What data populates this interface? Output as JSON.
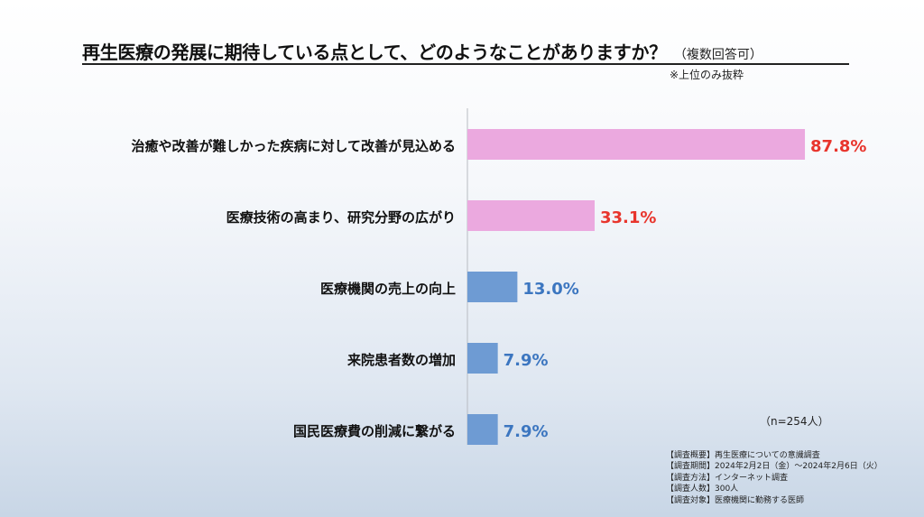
{
  "title": "再生医療の発展に期待している点として、どのようなことがありますか？",
  "title_sub": "（複数回答可）",
  "note": "※上位のみ抜粋",
  "sample_size": "（n=254人）",
  "survey": [
    "【調査概要】再生医療についての意識調査",
    "【調査期間】2024年2月2日（金）～2024年2月6日（火）",
    "【調査方法】インターネット調査",
    "【調査人数】300人",
    "【調査対象】医療機関に勤務する医師"
  ],
  "colors": {
    "highlight_bar": "#EBA9DF",
    "highlight_text": "#E8352D",
    "normal_bar": "#6E9BD3",
    "normal_text": "#3C76C0"
  },
  "chart_data": {
    "type": "bar",
    "orientation": "horizontal",
    "categories": [
      "治癒や改善が難しかった疾病に対して改善が見込める",
      "医療技術の高まり、研究分野の広がり",
      "医療機関の売上の向上",
      "来院患者数の増加",
      "国民医療費の削減に繋がる"
    ],
    "values": [
      87.8,
      33.1,
      13.0,
      7.9,
      7.9
    ],
    "value_labels": [
      "87.8%",
      "33.1%",
      "13.0%",
      "7.9%",
      "7.9%"
    ],
    "highlight": [
      true,
      true,
      false,
      false,
      false
    ],
    "xlim": [
      0,
      100
    ],
    "grid": false,
    "legend": "none"
  }
}
